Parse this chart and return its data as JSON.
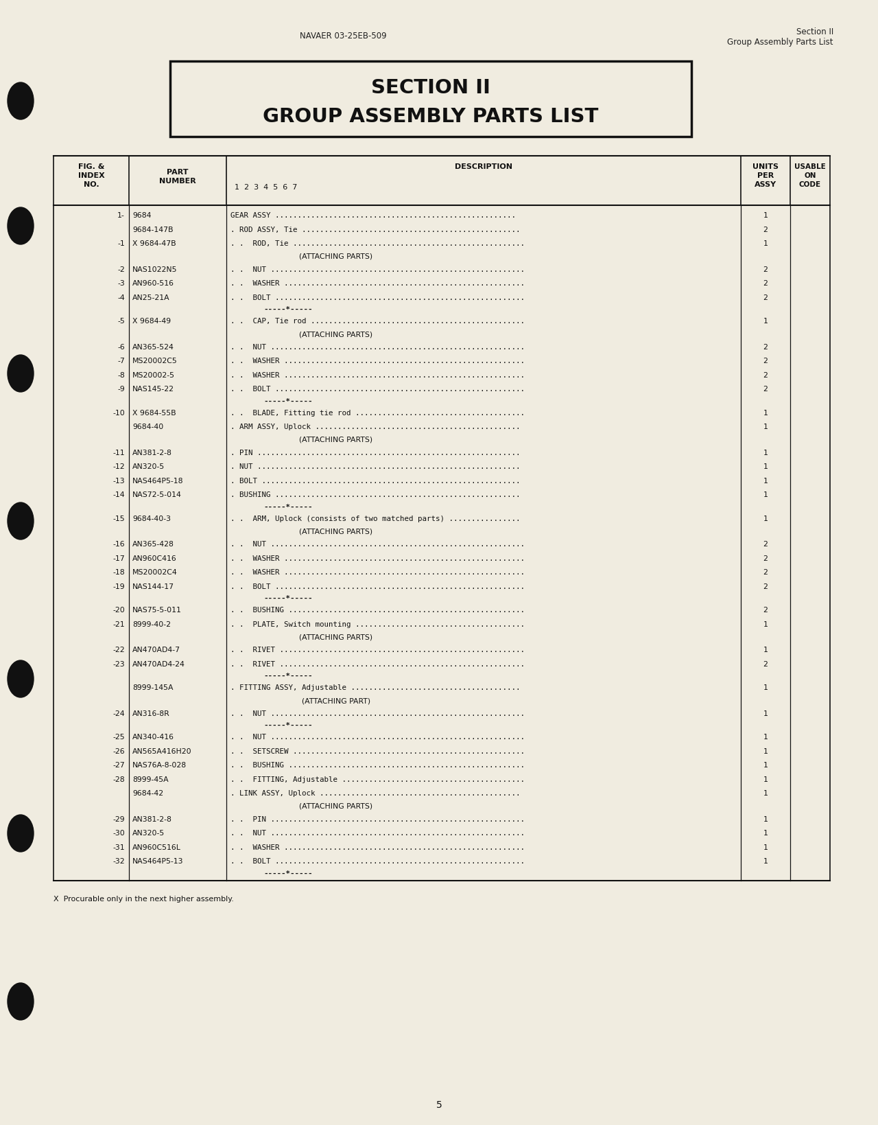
{
  "bg_color": "#f0ece0",
  "header_left": "NAVAER 03-25EB-509",
  "header_right_line1": "Section II",
  "header_right_line2": "Group Assembly Parts List",
  "title_line1": "SECTION II",
  "title_line2": "GROUP ASSEMBLY PARTS LIST",
  "rows": [
    {
      "index": "1-",
      "part": "9684",
      "desc": "GEAR ASSY ......................................................",
      "units": "1",
      "separator": false,
      "attaching": false
    },
    {
      "index": "",
      "part": "9684-147B",
      "desc": ". ROD ASSY, Tie .................................................",
      "units": "2",
      "separator": false,
      "attaching": false
    },
    {
      "index": "-1",
      "part": "X 9684-47B",
      "desc": ". .  ROD, Tie ....................................................",
      "units": "1",
      "separator": false,
      "attaching": false
    },
    {
      "index": "",
      "part": "",
      "desc": "(ATTACHING PARTS)",
      "units": "",
      "separator": false,
      "attaching": true
    },
    {
      "index": "-2",
      "part": "NAS1022N5",
      "desc": ". .  NUT .........................................................",
      "units": "2",
      "separator": false,
      "attaching": false
    },
    {
      "index": "-3",
      "part": "AN960-516",
      "desc": ". .  WASHER ......................................................",
      "units": "2",
      "separator": false,
      "attaching": false
    },
    {
      "index": "-4",
      "part": "AN25-21A",
      "desc": ". .  BOLT ........................................................",
      "units": "2",
      "separator": false,
      "attaching": false
    },
    {
      "index": "",
      "part": "",
      "desc": "-----*-----",
      "units": "",
      "separator": true,
      "attaching": false
    },
    {
      "index": "-5",
      "part": "X 9684-49",
      "desc": ". .  CAP, Tie rod ................................................",
      "units": "1",
      "separator": false,
      "attaching": false
    },
    {
      "index": "",
      "part": "",
      "desc": "(ATTACHING PARTS)",
      "units": "",
      "separator": false,
      "attaching": true
    },
    {
      "index": "-6",
      "part": "AN365-524",
      "desc": ". .  NUT .........................................................",
      "units": "2",
      "separator": false,
      "attaching": false
    },
    {
      "index": "-7",
      "part": "MS20002C5",
      "desc": ". .  WASHER ......................................................",
      "units": "2",
      "separator": false,
      "attaching": false
    },
    {
      "index": "-8",
      "part": "MS20002-5",
      "desc": ". .  WASHER ......................................................",
      "units": "2",
      "separator": false,
      "attaching": false
    },
    {
      "index": "-9",
      "part": "NAS145-22",
      "desc": ". .  BOLT ........................................................",
      "units": "2",
      "separator": false,
      "attaching": false
    },
    {
      "index": "",
      "part": "",
      "desc": "-----*-----",
      "units": "",
      "separator": true,
      "attaching": false
    },
    {
      "index": "-10",
      "part": "X 9684-55B",
      "desc": ". .  BLADE, Fitting tie rod ......................................",
      "units": "1",
      "separator": false,
      "attaching": false
    },
    {
      "index": "",
      "part": "9684-40",
      "desc": ". ARM ASSY, Uplock ..............................................",
      "units": "1",
      "separator": false,
      "attaching": false
    },
    {
      "index": "",
      "part": "",
      "desc": "(ATTACHING PARTS)",
      "units": "",
      "separator": false,
      "attaching": true
    },
    {
      "index": "-11",
      "part": "AN381-2-8",
      "desc": ". PIN ...........................................................",
      "units": "1",
      "separator": false,
      "attaching": false
    },
    {
      "index": "-12",
      "part": "AN320-5",
      "desc": ". NUT ...........................................................",
      "units": "1",
      "separator": false,
      "attaching": false
    },
    {
      "index": "-13",
      "part": "NAS464P5-18",
      "desc": ". BOLT ..........................................................",
      "units": "1",
      "separator": false,
      "attaching": false
    },
    {
      "index": "-14",
      "part": "NAS72-5-014",
      "desc": ". BUSHING .......................................................",
      "units": "1",
      "separator": false,
      "attaching": false
    },
    {
      "index": "",
      "part": "",
      "desc": "-----*-----",
      "units": "",
      "separator": true,
      "attaching": false
    },
    {
      "index": "-15",
      "part": "9684-40-3",
      "desc": ". .  ARM, Uplock (consists of two matched parts) ................",
      "units": "1",
      "separator": false,
      "attaching": false
    },
    {
      "index": "",
      "part": "",
      "desc": "(ATTACHING PARTS)",
      "units": "",
      "separator": false,
      "attaching": true
    },
    {
      "index": "-16",
      "part": "AN365-428",
      "desc": ". .  NUT .........................................................",
      "units": "2",
      "separator": false,
      "attaching": false
    },
    {
      "index": "-17",
      "part": "AN960C416",
      "desc": ". .  WASHER ......................................................",
      "units": "2",
      "separator": false,
      "attaching": false
    },
    {
      "index": "-18",
      "part": "MS20002C4",
      "desc": ". .  WASHER ......................................................",
      "units": "2",
      "separator": false,
      "attaching": false
    },
    {
      "index": "-19",
      "part": "NAS144-17",
      "desc": ". .  BOLT ........................................................",
      "units": "2",
      "separator": false,
      "attaching": false
    },
    {
      "index": "",
      "part": "",
      "desc": "-----*-----",
      "units": "",
      "separator": true,
      "attaching": false
    },
    {
      "index": "-20",
      "part": "NAS75-5-011",
      "desc": ". .  BUSHING .....................................................",
      "units": "2",
      "separator": false,
      "attaching": false
    },
    {
      "index": "-21",
      "part": "8999-40-2",
      "desc": ". .  PLATE, Switch mounting ......................................",
      "units": "1",
      "separator": false,
      "attaching": false
    },
    {
      "index": "",
      "part": "",
      "desc": "(ATTACHING PARTS)",
      "units": "",
      "separator": false,
      "attaching": true
    },
    {
      "index": "-22",
      "part": "AN470AD4-7",
      "desc": ". .  RIVET .......................................................",
      "units": "1",
      "separator": false,
      "attaching": false
    },
    {
      "index": "-23",
      "part": "AN470AD4-24",
      "desc": ". .  RIVET .......................................................",
      "units": "2",
      "separator": false,
      "attaching": false
    },
    {
      "index": "",
      "part": "",
      "desc": "-----*-----",
      "units": "",
      "separator": true,
      "attaching": false
    },
    {
      "index": "",
      "part": "8999-145A",
      "desc": ". FITTING ASSY, Adjustable ......................................",
      "units": "1",
      "separator": false,
      "attaching": false
    },
    {
      "index": "",
      "part": "",
      "desc": "(ATTACHING PART)",
      "units": "",
      "separator": false,
      "attaching": true
    },
    {
      "index": "-24",
      "part": "AN316-8R",
      "desc": ". .  NUT .........................................................",
      "units": "1",
      "separator": false,
      "attaching": false
    },
    {
      "index": "",
      "part": "",
      "desc": "-----*-----",
      "units": "",
      "separator": true,
      "attaching": false
    },
    {
      "index": "-25",
      "part": "AN340-416",
      "desc": ". .  NUT .........................................................",
      "units": "1",
      "separator": false,
      "attaching": false
    },
    {
      "index": "-26",
      "part": "AN565A416H20",
      "desc": ". .  SETSCREW ....................................................",
      "units": "1",
      "separator": false,
      "attaching": false
    },
    {
      "index": "-27",
      "part": "NAS76A-8-028",
      "desc": ". .  BUSHING .....................................................",
      "units": "1",
      "separator": false,
      "attaching": false
    },
    {
      "index": "-28",
      "part": "8999-45A",
      "desc": ". .  FITTING, Adjustable .........................................",
      "units": "1",
      "separator": false,
      "attaching": false
    },
    {
      "index": "",
      "part": "9684-42",
      "desc": ". LINK ASSY, Uplock .............................................",
      "units": "1",
      "separator": false,
      "attaching": false
    },
    {
      "index": "",
      "part": "",
      "desc": "(ATTACHING PARTS)",
      "units": "",
      "separator": false,
      "attaching": true
    },
    {
      "index": "-29",
      "part": "AN381-2-8",
      "desc": ". .  PIN .........................................................",
      "units": "1",
      "separator": false,
      "attaching": false
    },
    {
      "index": "-30",
      "part": "AN320-5",
      "desc": ". .  NUT .........................................................",
      "units": "1",
      "separator": false,
      "attaching": false
    },
    {
      "index": "-31",
      "part": "AN960C516L",
      "desc": ". .  WASHER ......................................................",
      "units": "1",
      "separator": false,
      "attaching": false
    },
    {
      "index": "-32",
      "part": "NAS464P5-13",
      "desc": ". .  BOLT ........................................................",
      "units": "1",
      "separator": false,
      "attaching": false
    },
    {
      "index": "",
      "part": "",
      "desc": "-----*-----",
      "units": "",
      "separator": true,
      "attaching": false
    }
  ],
  "footnote": "X  Procurable only in the next higher assembly.",
  "page_number": "5"
}
